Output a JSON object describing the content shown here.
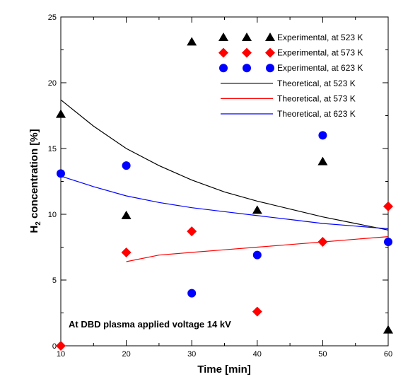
{
  "chart_data": {
    "type": "scatter",
    "xlabel": "Time [min]",
    "ylabel_main": "H",
    "ylabel_sub": "2",
    "ylabel_rest": " concentration [%]",
    "xlim": [
      10,
      60
    ],
    "ylim": [
      0,
      25
    ],
    "xticks": [
      "10",
      "20",
      "30",
      "40",
      "50",
      "60"
    ],
    "yticks": [
      "0",
      "5",
      "10",
      "15",
      "20",
      "25"
    ],
    "grid": false,
    "legend_position": "top-right",
    "annotation": "At DBD plasma applied voltage 14 kV",
    "series": [
      {
        "name": "Experimental, at 523 K",
        "kind": "scatter",
        "marker": "triangle",
        "color": "#000000",
        "x": [
          10,
          20,
          30,
          40,
          50,
          60
        ],
        "y": [
          17.6,
          9.9,
          23.1,
          10.3,
          14.0,
          1.2
        ]
      },
      {
        "name": "Experimental, at 573 K",
        "kind": "scatter",
        "marker": "diamond",
        "color": "#ff0000",
        "x": [
          10,
          20,
          30,
          40,
          50,
          60
        ],
        "y": [
          0.0,
          7.1,
          8.7,
          2.6,
          7.9,
          10.6
        ]
      },
      {
        "name": "Experimental, at 623 K",
        "kind": "scatter",
        "marker": "circle",
        "color": "#0000ff",
        "x": [
          10,
          20,
          30,
          40,
          50,
          60
        ],
        "y": [
          13.1,
          13.7,
          4.0,
          6.9,
          16.0,
          7.9
        ]
      },
      {
        "name": "Theoretical, at 523 K",
        "kind": "line",
        "color": "#000000",
        "x": [
          10,
          15,
          20,
          25,
          30,
          35,
          40,
          45,
          50,
          55,
          60
        ],
        "y": [
          18.7,
          16.7,
          15.0,
          13.7,
          12.6,
          11.7,
          11.0,
          10.4,
          9.8,
          9.3,
          8.8
        ]
      },
      {
        "name": "Theoretical, at 573 K",
        "kind": "line",
        "color": "#ff0000",
        "x": [
          20,
          25,
          30,
          35,
          40,
          45,
          50,
          55,
          60
        ],
        "y": [
          6.4,
          6.9,
          7.1,
          7.3,
          7.5,
          7.7,
          7.9,
          8.1,
          8.3
        ]
      },
      {
        "name": "Theoretical, at 623 K",
        "kind": "line",
        "color": "#0000ff",
        "x": [
          10,
          15,
          20,
          25,
          30,
          35,
          40,
          45,
          50,
          55,
          60
        ],
        "y": [
          12.9,
          12.1,
          11.4,
          10.9,
          10.5,
          10.2,
          9.9,
          9.6,
          9.3,
          9.1,
          8.9
        ]
      }
    ]
  }
}
